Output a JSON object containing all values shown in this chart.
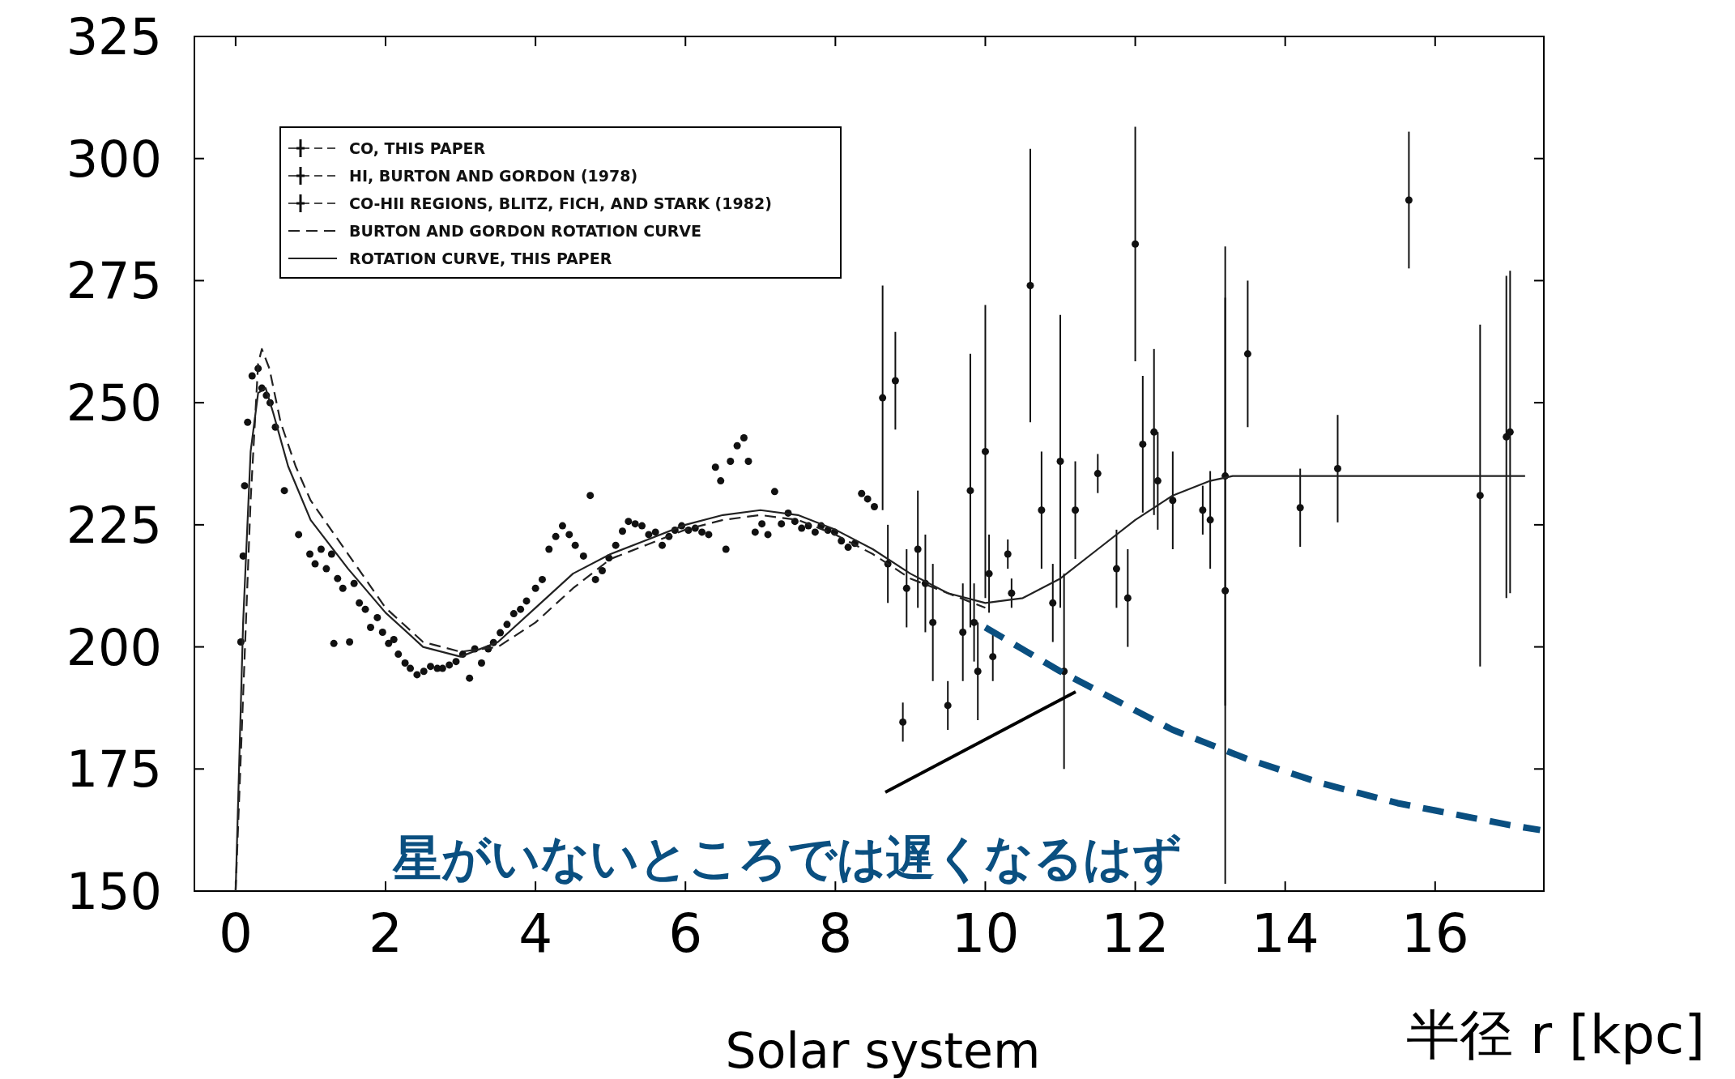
{
  "chart_data": {
    "type": "scatter",
    "xlabel": "半径 r [kpc]",
    "xlim": [
      -0.55,
      17.45
    ],
    "ylim": [
      150,
      325
    ],
    "xticks": [
      0,
      2,
      4,
      6,
      8,
      10,
      12,
      14,
      16
    ],
    "yticks": [
      150,
      175,
      200,
      225,
      250,
      275,
      300,
      325
    ],
    "grid": false,
    "legend": "top left",
    "marker": "circle",
    "series": [
      {
        "name": "CO, THIS PAPER",
        "color": "#111111",
        "x": [
          0.84,
          0.99,
          1.06,
          1.14,
          1.21,
          1.28,
          1.31,
          1.36,
          1.43,
          1.52,
          1.58,
          1.65,
          1.73,
          1.8,
          1.89,
          1.96,
          2.04,
          2.11,
          2.17,
          2.26,
          2.33,
          2.42,
          2.51,
          2.6,
          2.69,
          2.76,
          2.85,
          2.94,
          3.03,
          3.12,
          3.19,
          3.28,
          3.37,
          3.44,
          3.53,
          3.62,
          3.71,
          3.8,
          3.88,
          4.0,
          4.09,
          4.18,
          4.27,
          4.36,
          4.45,
          4.53,
          4.64,
          4.73,
          4.8,
          4.89,
          4.98,
          5.07,
          5.16,
          5.24,
          5.33,
          5.42,
          5.51,
          5.6,
          5.69,
          5.78,
          5.86,
          5.95,
          6.04,
          6.13,
          6.22,
          6.31,
          6.4,
          6.47,
          6.54,
          6.6,
          6.69,
          6.78,
          6.84,
          6.93,
          7.02,
          7.1,
          7.19,
          7.28,
          7.37,
          7.46,
          7.55,
          7.64,
          7.73,
          7.81,
          7.9,
          7.99,
          8.08,
          8.17,
          8.26,
          8.35,
          8.43,
          8.52
        ],
        "values": [
          223,
          219,
          217,
          220,
          216,
          219,
          200.7,
          214,
          212,
          201,
          213,
          209,
          207.7,
          204,
          206,
          203,
          200.7,
          201.5,
          198.5,
          196.7,
          195.6,
          194.3,
          195,
          196,
          195.6,
          195.6,
          196.3,
          197,
          198.5,
          193.6,
          199.6,
          196.7,
          199.6,
          200.9,
          202.9,
          204.6,
          206.8,
          207.7,
          209.4,
          212,
          213.8,
          220,
          222.6,
          224.8,
          223,
          220.8,
          218.6,
          231,
          213.8,
          215.6,
          218.2,
          220.8,
          223.7,
          225.7,
          225.2,
          224.8,
          223,
          223.5,
          220.8,
          222.6,
          223.9,
          224.8,
          223.9,
          224.3,
          223.5,
          223,
          236.8,
          234,
          220,
          238,
          241.2,
          242.8,
          238,
          223.5,
          225.2,
          223,
          231.8,
          225.2,
          227.4,
          225.7,
          224.3,
          224.8,
          223.5,
          224.8,
          223.9,
          223.5,
          221.7,
          220.4,
          221.2,
          231.4,
          230.3,
          228.7
        ]
      },
      {
        "name": "HI, BURTON AND GORDON (1978)",
        "color": "#111111",
        "x": [
          0.07,
          0.1,
          0.12,
          0.16,
          0.22,
          0.3,
          0.35,
          0.41,
          0.46,
          0.53,
          0.65
        ],
        "values": [
          201,
          218.6,
          233,
          246,
          255.5,
          257,
          253,
          251.5,
          250,
          245,
          232
        ]
      },
      {
        "name": "CO-HII REGIONS, BLITZ, FICH, AND STARK (1982)",
        "color": "#111111",
        "x": [
          8.63,
          8.8,
          8.7,
          8.9,
          8.95,
          9.1,
          9.2,
          9.3,
          9.5,
          9.7,
          9.8,
          9.85,
          9.9,
          10.0,
          10.05,
          10.1,
          10.3,
          10.35,
          10.6,
          10.75,
          10.9,
          11.0,
          11.05,
          11.2,
          11.5,
          11.75,
          11.9,
          12.0,
          12.1,
          12.25,
          12.3,
          12.5,
          12.9,
          13.0,
          13.2,
          13.2,
          13.5,
          14.2,
          14.7,
          15.65,
          16.6,
          16.95,
          17.0
        ],
        "values": [
          251,
          254.5,
          217,
          184.6,
          212,
          220,
          213,
          205,
          188,
          203,
          232,
          205,
          195,
          240,
          215,
          198,
          219,
          211,
          274,
          228,
          209,
          238,
          195,
          228,
          235.5,
          216,
          210,
          282.5,
          241.5,
          244,
          234,
          230,
          228,
          226,
          235,
          211.5,
          260,
          228.5,
          236.5,
          291.5,
          231,
          243,
          244
        ],
        "errors": [
          23,
          10,
          8,
          4,
          8,
          12,
          10,
          12,
          5,
          10,
          28,
          8,
          10,
          30,
          8,
          5,
          3,
          3,
          28,
          12,
          8,
          30,
          20,
          10,
          4,
          8,
          10,
          24,
          14,
          17,
          10,
          10,
          5,
          10,
          47,
          60,
          15,
          8,
          11,
          14,
          35,
          33,
          33
        ]
      },
      {
        "name": "BURTON AND GORDON ROTATION CURVE",
        "type": "line",
        "marker": "none",
        "line_style": "dashed",
        "color": "#222222",
        "x": [
          0.0,
          0.1,
          0.2,
          0.3,
          0.35,
          0.45,
          0.6,
          0.8,
          1.0,
          1.5,
          2.0,
          2.5,
          3.0,
          3.5,
          4.0,
          4.5,
          5.0,
          5.5,
          6.0,
          6.5,
          7.0,
          7.5,
          8.0,
          8.5,
          9.0,
          9.5,
          10.0
        ],
        "values": [
          150,
          190,
          230,
          258,
          261,
          257,
          246,
          237,
          230,
          219,
          208,
          201,
          199,
          200,
          205,
          212,
          218,
          221,
          224,
          226,
          227,
          226,
          223,
          219,
          214,
          211,
          208
        ]
      },
      {
        "name": "ROTATION CURVE, THIS PAPER",
        "type": "line",
        "marker": "none",
        "line_style": "solid",
        "color": "#222222",
        "x": [
          0.0,
          0.1,
          0.2,
          0.3,
          0.4,
          0.5,
          0.7,
          1.0,
          1.5,
          2.0,
          2.5,
          3.0,
          3.5,
          4.0,
          4.5,
          5.0,
          5.5,
          6.0,
          6.5,
          7.0,
          7.5,
          8.0,
          8.5,
          9.0,
          9.5,
          10.0,
          10.5,
          11.0,
          11.5,
          12.0,
          12.5,
          13.0,
          13.3,
          14.0,
          15.0,
          16.0,
          17.2
        ],
        "values": [
          150,
          205,
          240,
          252,
          253,
          248,
          237,
          226,
          216,
          207,
          200,
          198,
          201,
          208,
          215,
          219,
          222,
          225,
          227,
          228,
          227,
          224,
          220,
          215,
          211,
          209,
          210,
          214,
          220,
          226,
          231,
          234,
          235,
          235,
          235,
          235,
          235
        ]
      },
      {
        "type": "line",
        "marker": "none",
        "line_style": "dashed",
        "color": "#0a4f80",
        "x": [
          10.0,
          10.5,
          11.0,
          11.5,
          12.0,
          12.5,
          13.0,
          13.5,
          14.0,
          14.5,
          15.0,
          15.5,
          16.0,
          16.5,
          17.0,
          17.4
        ],
        "values": [
          204,
          199.5,
          195,
          191,
          187,
          183,
          180,
          177,
          174.5,
          172,
          170,
          168,
          166.5,
          165,
          163.5,
          162.5
        ]
      }
    ],
    "annotations": [
      "星がいないところでは遅くなるはず",
      "Solar system"
    ]
  }
}
